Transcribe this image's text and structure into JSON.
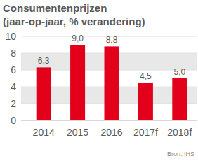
{
  "chart_data": {
    "type": "bar",
    "title": "Consumentenprijzen",
    "subtitle": "(jaar-op-jaar, % verandering)",
    "categories": [
      "2014",
      "2015",
      "2016",
      "2017f",
      "2018f"
    ],
    "values": [
      6.3,
      9.0,
      8.8,
      4.5,
      5.0
    ],
    "value_labels": [
      "6,3",
      "9,0",
      "8,8",
      "4,5",
      "5,0"
    ],
    "color": "#e2001a",
    "ylim": [
      0,
      10
    ],
    "yticks": [
      0,
      2,
      4,
      6,
      8,
      10
    ],
    "grid": true,
    "data_labels": true,
    "source": "Bron: IHS"
  }
}
